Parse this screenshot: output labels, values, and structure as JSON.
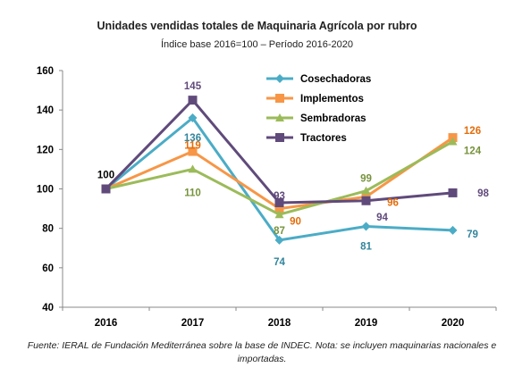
{
  "title": "Unidades vendidas totales de Maquinaria Agrícola por rubro",
  "subtitle": "Índice base 2016=100 – Período 2016-2020",
  "footer": "Fuente: IERAL de Fundación Mediterránea sobre la base de INDEC. Nota: se incluyen maquinarias nacionales e importadas.",
  "chart_data": {
    "type": "line",
    "x": [
      "2016",
      "2017",
      "2018",
      "2019",
      "2020"
    ],
    "ylim": [
      40,
      160
    ],
    "yticks": [
      40,
      60,
      80,
      100,
      120,
      140,
      160
    ],
    "grid": false,
    "legend": "top-center",
    "series": [
      {
        "name": "Cosechadoras",
        "color": "#4bacc6",
        "marker": "diamond",
        "values": [
          100,
          136,
          74,
          81,
          79
        ],
        "labels": [
          "",
          "136",
          "74",
          "81",
          "79"
        ]
      },
      {
        "name": "Implementos",
        "color": "#f79646",
        "marker": "square",
        "values": [
          100,
          119,
          90,
          96,
          126
        ],
        "labels": [
          "",
          "119",
          "90",
          "96",
          "126"
        ]
      },
      {
        "name": "Sembradoras",
        "color": "#9bbb59",
        "marker": "triangle",
        "values": [
          100,
          110,
          87,
          99,
          124
        ],
        "labels": [
          "",
          "110",
          "87",
          "99",
          "124"
        ]
      },
      {
        "name": "Tractores",
        "color": "#604a7b",
        "marker": "square",
        "values": [
          100,
          145,
          93,
          94,
          98
        ],
        "labels": [
          "100",
          "145",
          "93",
          "94",
          "98"
        ]
      }
    ],
    "label_colors": {
      "Cosechadoras": "#31859c",
      "Implementos": "#e46c0a",
      "Sembradoras": "#77933c",
      "Tractores": "#604a7b",
      "base": "#000000"
    }
  }
}
